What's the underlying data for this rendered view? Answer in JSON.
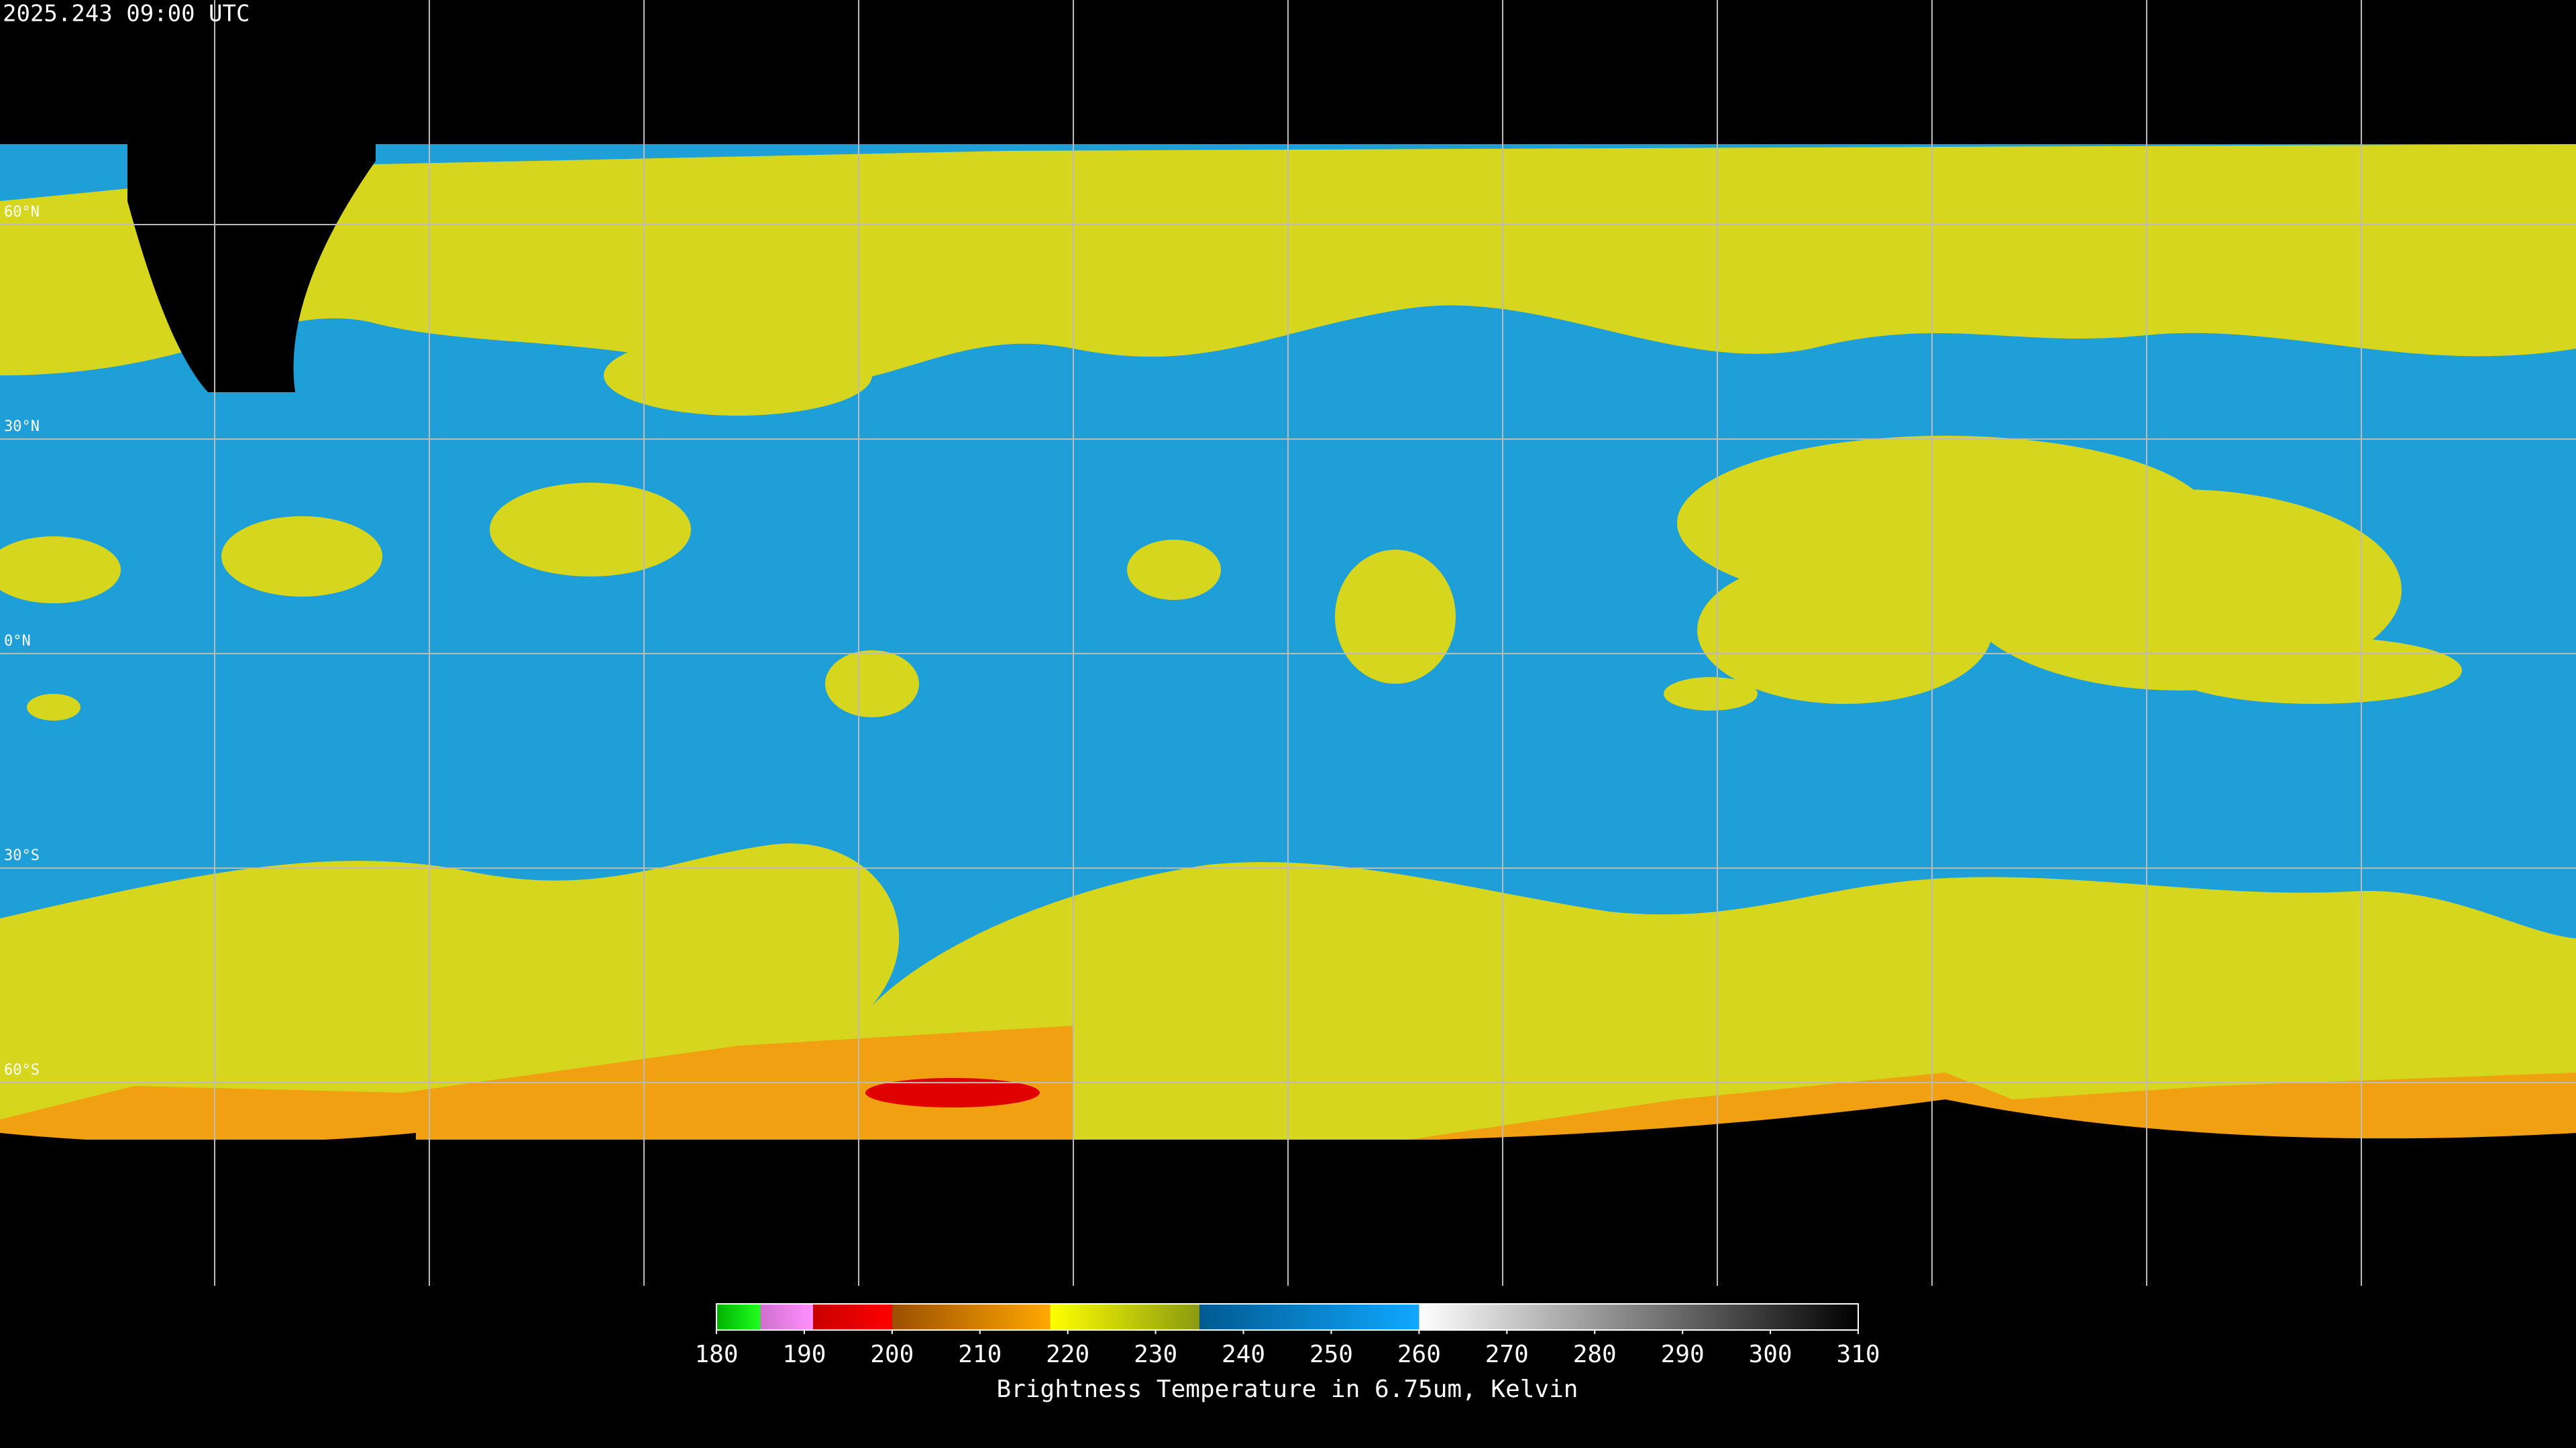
{
  "header": {
    "timestamp": "2025.243 09:00 UTC"
  },
  "map": {
    "latitude_lines": [
      {
        "value": 60,
        "label": "60°N"
      },
      {
        "value": 30,
        "label": "30°N"
      },
      {
        "value": 0,
        "label": "0°N"
      },
      {
        "value": -30,
        "label": "30°S"
      },
      {
        "value": -60,
        "label": "60°S"
      }
    ]
  },
  "colorbar": {
    "title": "Brightness Temperature in 6.75um, Kelvin",
    "range": [
      180,
      310
    ],
    "ticks": [
      180,
      190,
      200,
      210,
      220,
      230,
      240,
      250,
      260,
      270,
      280,
      290,
      300,
      310
    ],
    "segments": [
      {
        "from": 180,
        "to": 185,
        "colors": [
          "#00b000",
          "#20ff20"
        ]
      },
      {
        "from": 185,
        "to": 191,
        "colors": [
          "#d070d0",
          "#ff90ff"
        ]
      },
      {
        "from": 191,
        "to": 200,
        "colors": [
          "#c80000",
          "#ff0000"
        ]
      },
      {
        "from": 200,
        "to": 218,
        "colors": [
          "#9a5000",
          "#ffa800"
        ]
      },
      {
        "from": 218,
        "to": 235,
        "colors": [
          "#ffff00",
          "#8a9a10"
        ]
      },
      {
        "from": 235,
        "to": 260,
        "colors": [
          "#005a90",
          "#10a8ff"
        ]
      },
      {
        "from": 260,
        "to": 310,
        "colors": [
          "#ffffff",
          "#000000"
        ]
      }
    ]
  }
}
